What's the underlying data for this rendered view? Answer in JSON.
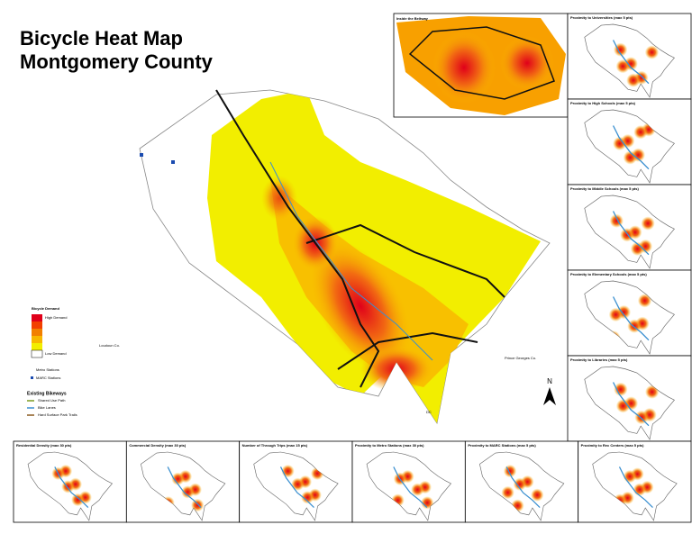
{
  "title": [
    "Bicycle Heat Map",
    "Montgomery County"
  ],
  "inset": {
    "title": "Inside the Beltway"
  },
  "legend": {
    "title": "Bicycle Demand",
    "high": "High Demand",
    "low": "Low Demand",
    "metro": "Metro Stations",
    "marc": "MARC Stations",
    "bikeways_title": "Existing Bikeways",
    "bikeways": [
      "Shared Use Path",
      "Bike Lanes",
      "Hard Surface Park Trails"
    ]
  },
  "places": {
    "west": "Loudoun Co.",
    "east": "Prince Georges Co.",
    "south": "DC",
    "north": "N"
  },
  "side_panels": [
    "Proximity to Universities (max 5 pts)",
    "Proximity to High Schools (max 5 pts)",
    "Proximity to Middle Schools (max 5 pts)",
    "Proximity to Elementary Schools (max 5 pts)",
    "Proximity to Libraries (max 5 pts)"
  ],
  "bottom_panels": [
    "Residential Density (max 30 pts)",
    "Commercial Density (max 30 pts)",
    "Number of Through Trips (max 15 pts)",
    "Proximity to Metro Stations (max 30 pts)",
    "Proximity to MARC Stations (max 5 pts)",
    "Proximity to Rec Centers (max 5 pts)"
  ]
}
